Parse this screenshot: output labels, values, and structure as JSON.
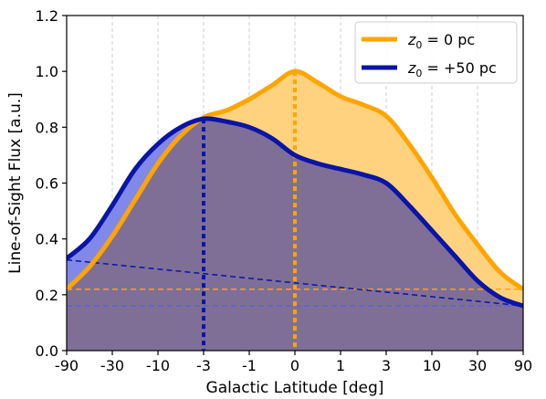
{
  "chart_data": {
    "type": "area",
    "xlabel": "Galactic Latitude [deg]",
    "ylabel": "Line-of-Sight Flux [a.u.]",
    "x_tick_labels": [
      "-90",
      "-30",
      "-10",
      "-3",
      "-1",
      "0",
      "1",
      "3",
      "10",
      "30",
      "90"
    ],
    "ylim": [
      0,
      1.2
    ],
    "y_ticks": [
      "0.0",
      "0.2",
      "0.4",
      "0.6",
      "0.8",
      "1.0",
      "1.2"
    ],
    "grid": "vertical dashed lines at x ticks",
    "legend_position": "top-right",
    "series": [
      {
        "name": "z0 = 0 pc",
        "legend_label": {
          "sym": "z",
          "sub": "0",
          "rest": " = 0 pc"
        },
        "color": "#FFA500",
        "fill_color": "#FFD27F",
        "x_index": [
          0,
          0.5,
          1,
          1.5,
          2,
          2.5,
          3,
          3.5,
          4,
          4.5,
          5,
          5.5,
          6,
          6.5,
          7,
          7.5,
          8,
          8.5,
          9,
          9.5,
          10
        ],
        "values": [
          0.22,
          0.3,
          0.41,
          0.54,
          0.67,
          0.77,
          0.835,
          0.86,
          0.9,
          0.95,
          1.0,
          0.96,
          0.91,
          0.88,
          0.84,
          0.74,
          0.62,
          0.49,
          0.38,
          0.28,
          0.22
        ],
        "peak_marker": {
          "x": "0",
          "value": 1.0
        },
        "baseline": 0.22
      },
      {
        "name": "z0 = +50 pc",
        "legend_label": {
          "sym": "z",
          "sub": "0",
          "rest": " = +50 pc"
        },
        "color": "#0A14A8",
        "fill_color": "#8088E8",
        "x_index": [
          0,
          0.5,
          1,
          1.5,
          2,
          2.5,
          3,
          3.5,
          4,
          4.5,
          5,
          5.5,
          6,
          6.5,
          7,
          7.5,
          8,
          8.5,
          9,
          9.5,
          10
        ],
        "values": [
          0.33,
          0.4,
          0.52,
          0.65,
          0.74,
          0.8,
          0.83,
          0.82,
          0.8,
          0.76,
          0.7,
          0.67,
          0.65,
          0.63,
          0.6,
          0.52,
          0.43,
          0.34,
          0.25,
          0.19,
          0.16
        ],
        "peak_marker": {
          "x": "-3",
          "value": 0.83
        },
        "baseline_sloped": [
          0.325,
          0.16
        ],
        "baseline": 0.16
      }
    ],
    "overlap_fill_color": "#7F6F96"
  }
}
